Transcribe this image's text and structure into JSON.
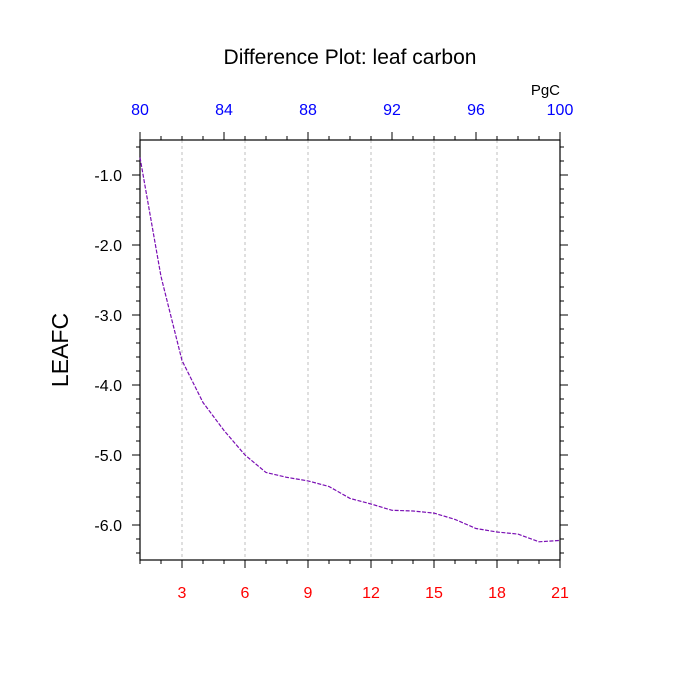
{
  "chart_data": {
    "type": "line",
    "title": "Difference Plot: leaf carbon",
    "ylabel": "LEAFC",
    "top_axis_unit": "PgC",
    "xlim": [
      1,
      21
    ],
    "ylim": [
      -6.5,
      -0.5
    ],
    "bottom_ticks": [
      3,
      6,
      9,
      12,
      15,
      18,
      21
    ],
    "bottom_tick_labels": [
      "3",
      "6",
      "9",
      "12",
      "15",
      "18",
      "21"
    ],
    "top_tick_labels": [
      "80",
      "84",
      "88",
      "92",
      "96",
      "100"
    ],
    "top_tick_positions": [
      1,
      5,
      9,
      13,
      17,
      21
    ],
    "top_minor_ticks": [
      2,
      3,
      4,
      6,
      7,
      8,
      10,
      11,
      12,
      14,
      15,
      16,
      18,
      19,
      20
    ],
    "y_ticks": [
      -1.0,
      -2.0,
      -3.0,
      -4.0,
      -5.0,
      -6.0
    ],
    "y_tick_labels": [
      "-1.0",
      "-2.0",
      "-3.0",
      "-4.0",
      "-5.0",
      "-6.0"
    ],
    "grid": "vertical dotted",
    "colors": {
      "bottom_ticks": "#ff0000",
      "top_ticks": "#0000ff",
      "series": "#7a0fb4"
    },
    "series": [
      {
        "x": [
          1,
          2,
          3,
          4,
          5,
          6,
          7,
          8,
          9,
          10,
          11,
          12,
          13,
          14,
          15,
          16,
          17,
          18,
          19,
          20,
          21
        ],
        "values": [
          -0.75,
          -2.45,
          -3.65,
          -4.25,
          -4.65,
          -5.0,
          -5.25,
          -5.32,
          -5.37,
          -5.45,
          -5.62,
          -5.7,
          -5.79,
          -5.8,
          -5.83,
          -5.92,
          -6.05,
          -6.1,
          -6.13,
          -6.24,
          -6.22
        ]
      }
    ]
  }
}
